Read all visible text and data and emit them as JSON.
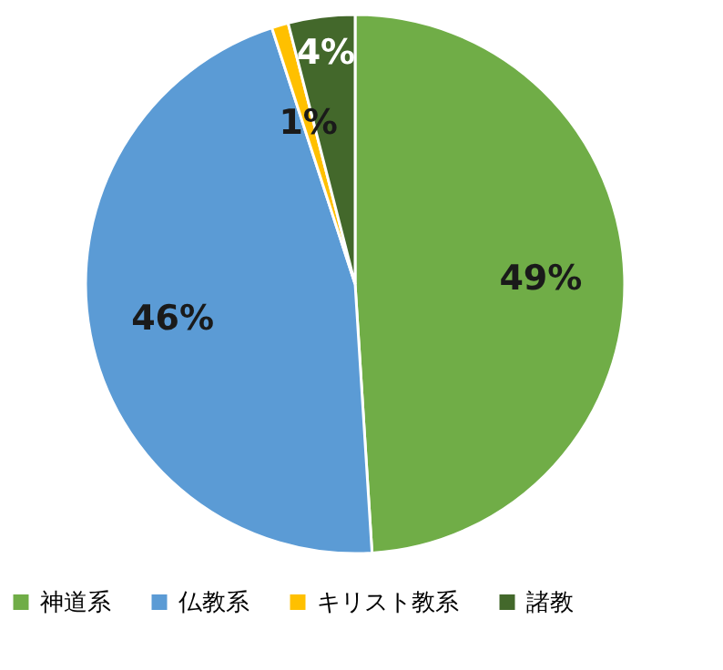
{
  "chart_data": {
    "type": "pie",
    "categories": [
      "神道系",
      "仏教系",
      "キリスト教系",
      "諸教"
    ],
    "values": [
      49,
      46,
      1,
      4
    ],
    "colors": [
      "#70ad47",
      "#5b9bd5",
      "#ffc000",
      "#43682b"
    ],
    "value_labels": [
      "49%",
      "46%",
      "1%",
      "4%"
    ],
    "legend": "bottom"
  }
}
